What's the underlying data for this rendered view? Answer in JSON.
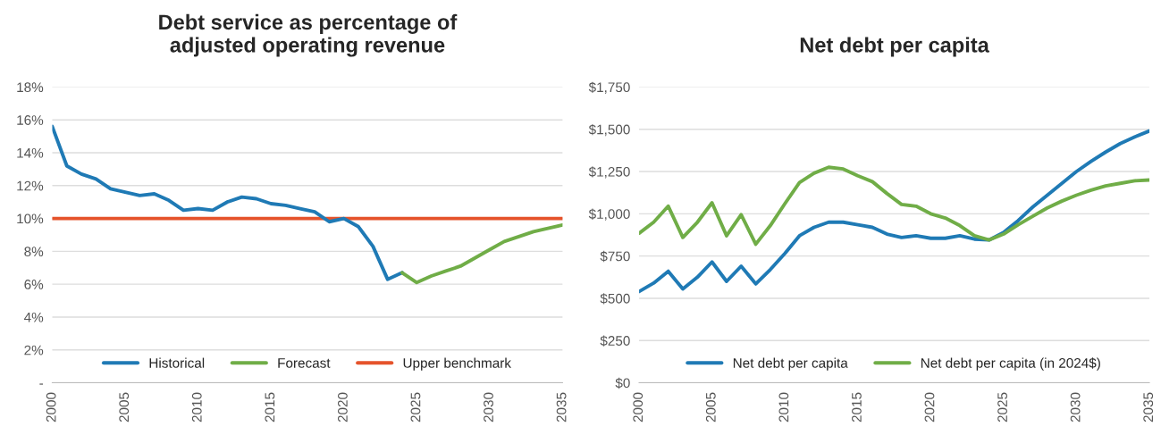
{
  "chart_data": [
    {
      "type": "line",
      "title": "Debt service as percentage of\nadjusted operating revenue",
      "series": [
        {
          "name": "Historical",
          "color": "#1f7ab5",
          "x": [
            2000,
            2001,
            2002,
            2003,
            2004,
            2005,
            2006,
            2007,
            2008,
            2009,
            2010,
            2011,
            2012,
            2013,
            2014,
            2015,
            2016,
            2017,
            2018,
            2019,
            2020,
            2021,
            2022,
            2023,
            2024
          ],
          "values": [
            15.6,
            13.2,
            12.7,
            12.4,
            11.8,
            11.6,
            11.4,
            11.5,
            11.1,
            10.5,
            10.6,
            10.5,
            11.0,
            11.3,
            11.2,
            10.9,
            10.8,
            10.6,
            10.4,
            9.8,
            10.0,
            9.5,
            8.3,
            6.3,
            6.7
          ]
        },
        {
          "name": "Forecast",
          "color": "#70ad47",
          "x": [
            2024,
            2025,
            2026,
            2027,
            2028,
            2029,
            2030,
            2031,
            2032,
            2033,
            2034,
            2035
          ],
          "values": [
            6.7,
            6.1,
            6.5,
            6.8,
            7.1,
            7.6,
            8.1,
            8.6,
            8.9,
            9.2,
            9.4,
            9.6
          ]
        }
      ],
      "ref_lines": [
        {
          "axis": "y",
          "value": 10,
          "label": "Upper benchmark",
          "color": "#e5532b"
        }
      ],
      "xlim": [
        2000,
        2035
      ],
      "xticks": [
        2000,
        2005,
        2010,
        2015,
        2020,
        2025,
        2030,
        2035
      ],
      "ylim": [
        0,
        18
      ],
      "yticks": [
        {
          "value": 0,
          "label": "-"
        },
        {
          "value": 2,
          "label": "2%"
        },
        {
          "value": 4,
          "label": "4%"
        },
        {
          "value": 6,
          "label": "6%"
        },
        {
          "value": 8,
          "label": "8%"
        },
        {
          "value": 10,
          "label": "10%"
        },
        {
          "value": 12,
          "label": "12%"
        },
        {
          "value": 14,
          "label": "14%"
        },
        {
          "value": 16,
          "label": "16%"
        },
        {
          "value": 18,
          "label": "18%"
        }
      ],
      "grid": "y",
      "legend": "bottom",
      "marker": "none"
    },
    {
      "type": "line",
      "title": "Net debt per capita",
      "series": [
        {
          "name": "Net debt per capita",
          "color": "#1f7ab5",
          "x": [
            2000,
            2001,
            2002,
            2003,
            2004,
            2005,
            2006,
            2007,
            2008,
            2009,
            2010,
            2011,
            2012,
            2013,
            2014,
            2015,
            2016,
            2017,
            2018,
            2019,
            2020,
            2021,
            2022,
            2023,
            2024,
            2025,
            2026,
            2027,
            2028,
            2029,
            2030,
            2031,
            2032,
            2033,
            2034,
            2035
          ],
          "values": [
            540,
            590,
            660,
            555,
            625,
            715,
            600,
            690,
            585,
            670,
            765,
            870,
            920,
            950,
            950,
            935,
            920,
            880,
            860,
            870,
            855,
            855,
            870,
            850,
            845,
            890,
            960,
            1040,
            1110,
            1180,
            1250,
            1310,
            1365,
            1415,
            1455,
            1490
          ]
        },
        {
          "name": "Net debt per capita (in 2024$)",
          "color": "#70ad47",
          "x": [
            2000,
            2001,
            2002,
            2003,
            2004,
            2005,
            2006,
            2007,
            2008,
            2009,
            2010,
            2011,
            2012,
            2013,
            2014,
            2015,
            2016,
            2017,
            2018,
            2019,
            2020,
            2021,
            2022,
            2023,
            2024,
            2025,
            2026,
            2027,
            2028,
            2029,
            2030,
            2031,
            2032,
            2033,
            2034,
            2035
          ],
          "values": [
            885,
            950,
            1045,
            860,
            950,
            1065,
            870,
            995,
            820,
            930,
            1060,
            1185,
            1240,
            1275,
            1265,
            1225,
            1190,
            1120,
            1055,
            1045,
            1000,
            975,
            930,
            870,
            845,
            880,
            935,
            985,
            1035,
            1075,
            1110,
            1140,
            1165,
            1180,
            1195,
            1200
          ]
        }
      ],
      "xlim": [
        2000,
        2035
      ],
      "xticks": [
        2000,
        2005,
        2010,
        2015,
        2020,
        2025,
        2030,
        2035
      ],
      "ylim": [
        0,
        1750
      ],
      "yticks": [
        {
          "value": 0,
          "label": "$0"
        },
        {
          "value": 250,
          "label": "$250"
        },
        {
          "value": 500,
          "label": "$500"
        },
        {
          "value": 750,
          "label": "$750"
        },
        {
          "value": 1000,
          "label": "$1,000"
        },
        {
          "value": 1250,
          "label": "$1,250"
        },
        {
          "value": 1500,
          "label": "$1,500"
        },
        {
          "value": 1750,
          "label": "$1,750"
        }
      ],
      "grid": "y",
      "legend": "bottom",
      "marker": "none"
    }
  ]
}
